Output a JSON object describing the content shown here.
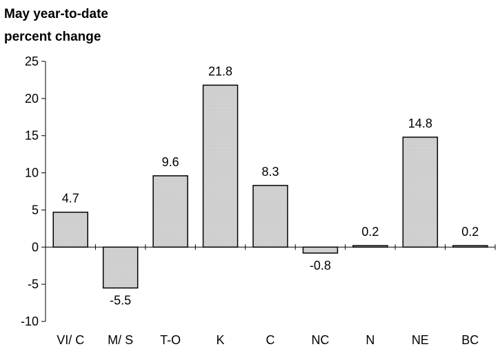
{
  "chart_data": {
    "type": "bar",
    "title_lines": [
      "May year-to-date",
      "percent change"
    ],
    "categories": [
      "VI/ C",
      "M/ S",
      "T-O",
      "K",
      "C",
      "NC",
      "N",
      "NE",
      "BC"
    ],
    "values": [
      4.7,
      -5.5,
      9.6,
      21.8,
      8.3,
      -0.8,
      0.2,
      14.8,
      0.2
    ],
    "data_labels": [
      "4.7",
      "-5.5",
      "9.6",
      "21.8",
      "8.3",
      "-0.8",
      "0.2",
      "14.8",
      "0.2"
    ],
    "ylim": [
      -10,
      25
    ],
    "yticks": [
      -10,
      -5,
      0,
      5,
      10,
      15,
      20,
      25
    ],
    "ytick_labels": [
      "-10",
      "-5",
      "0",
      "5",
      "10",
      "15",
      "20",
      "25"
    ],
    "grid": false,
    "legend": "none",
    "colors": {
      "bar_fill": "#d6d6d6",
      "bar_stroke": "#000000",
      "axis": "#000000"
    }
  }
}
